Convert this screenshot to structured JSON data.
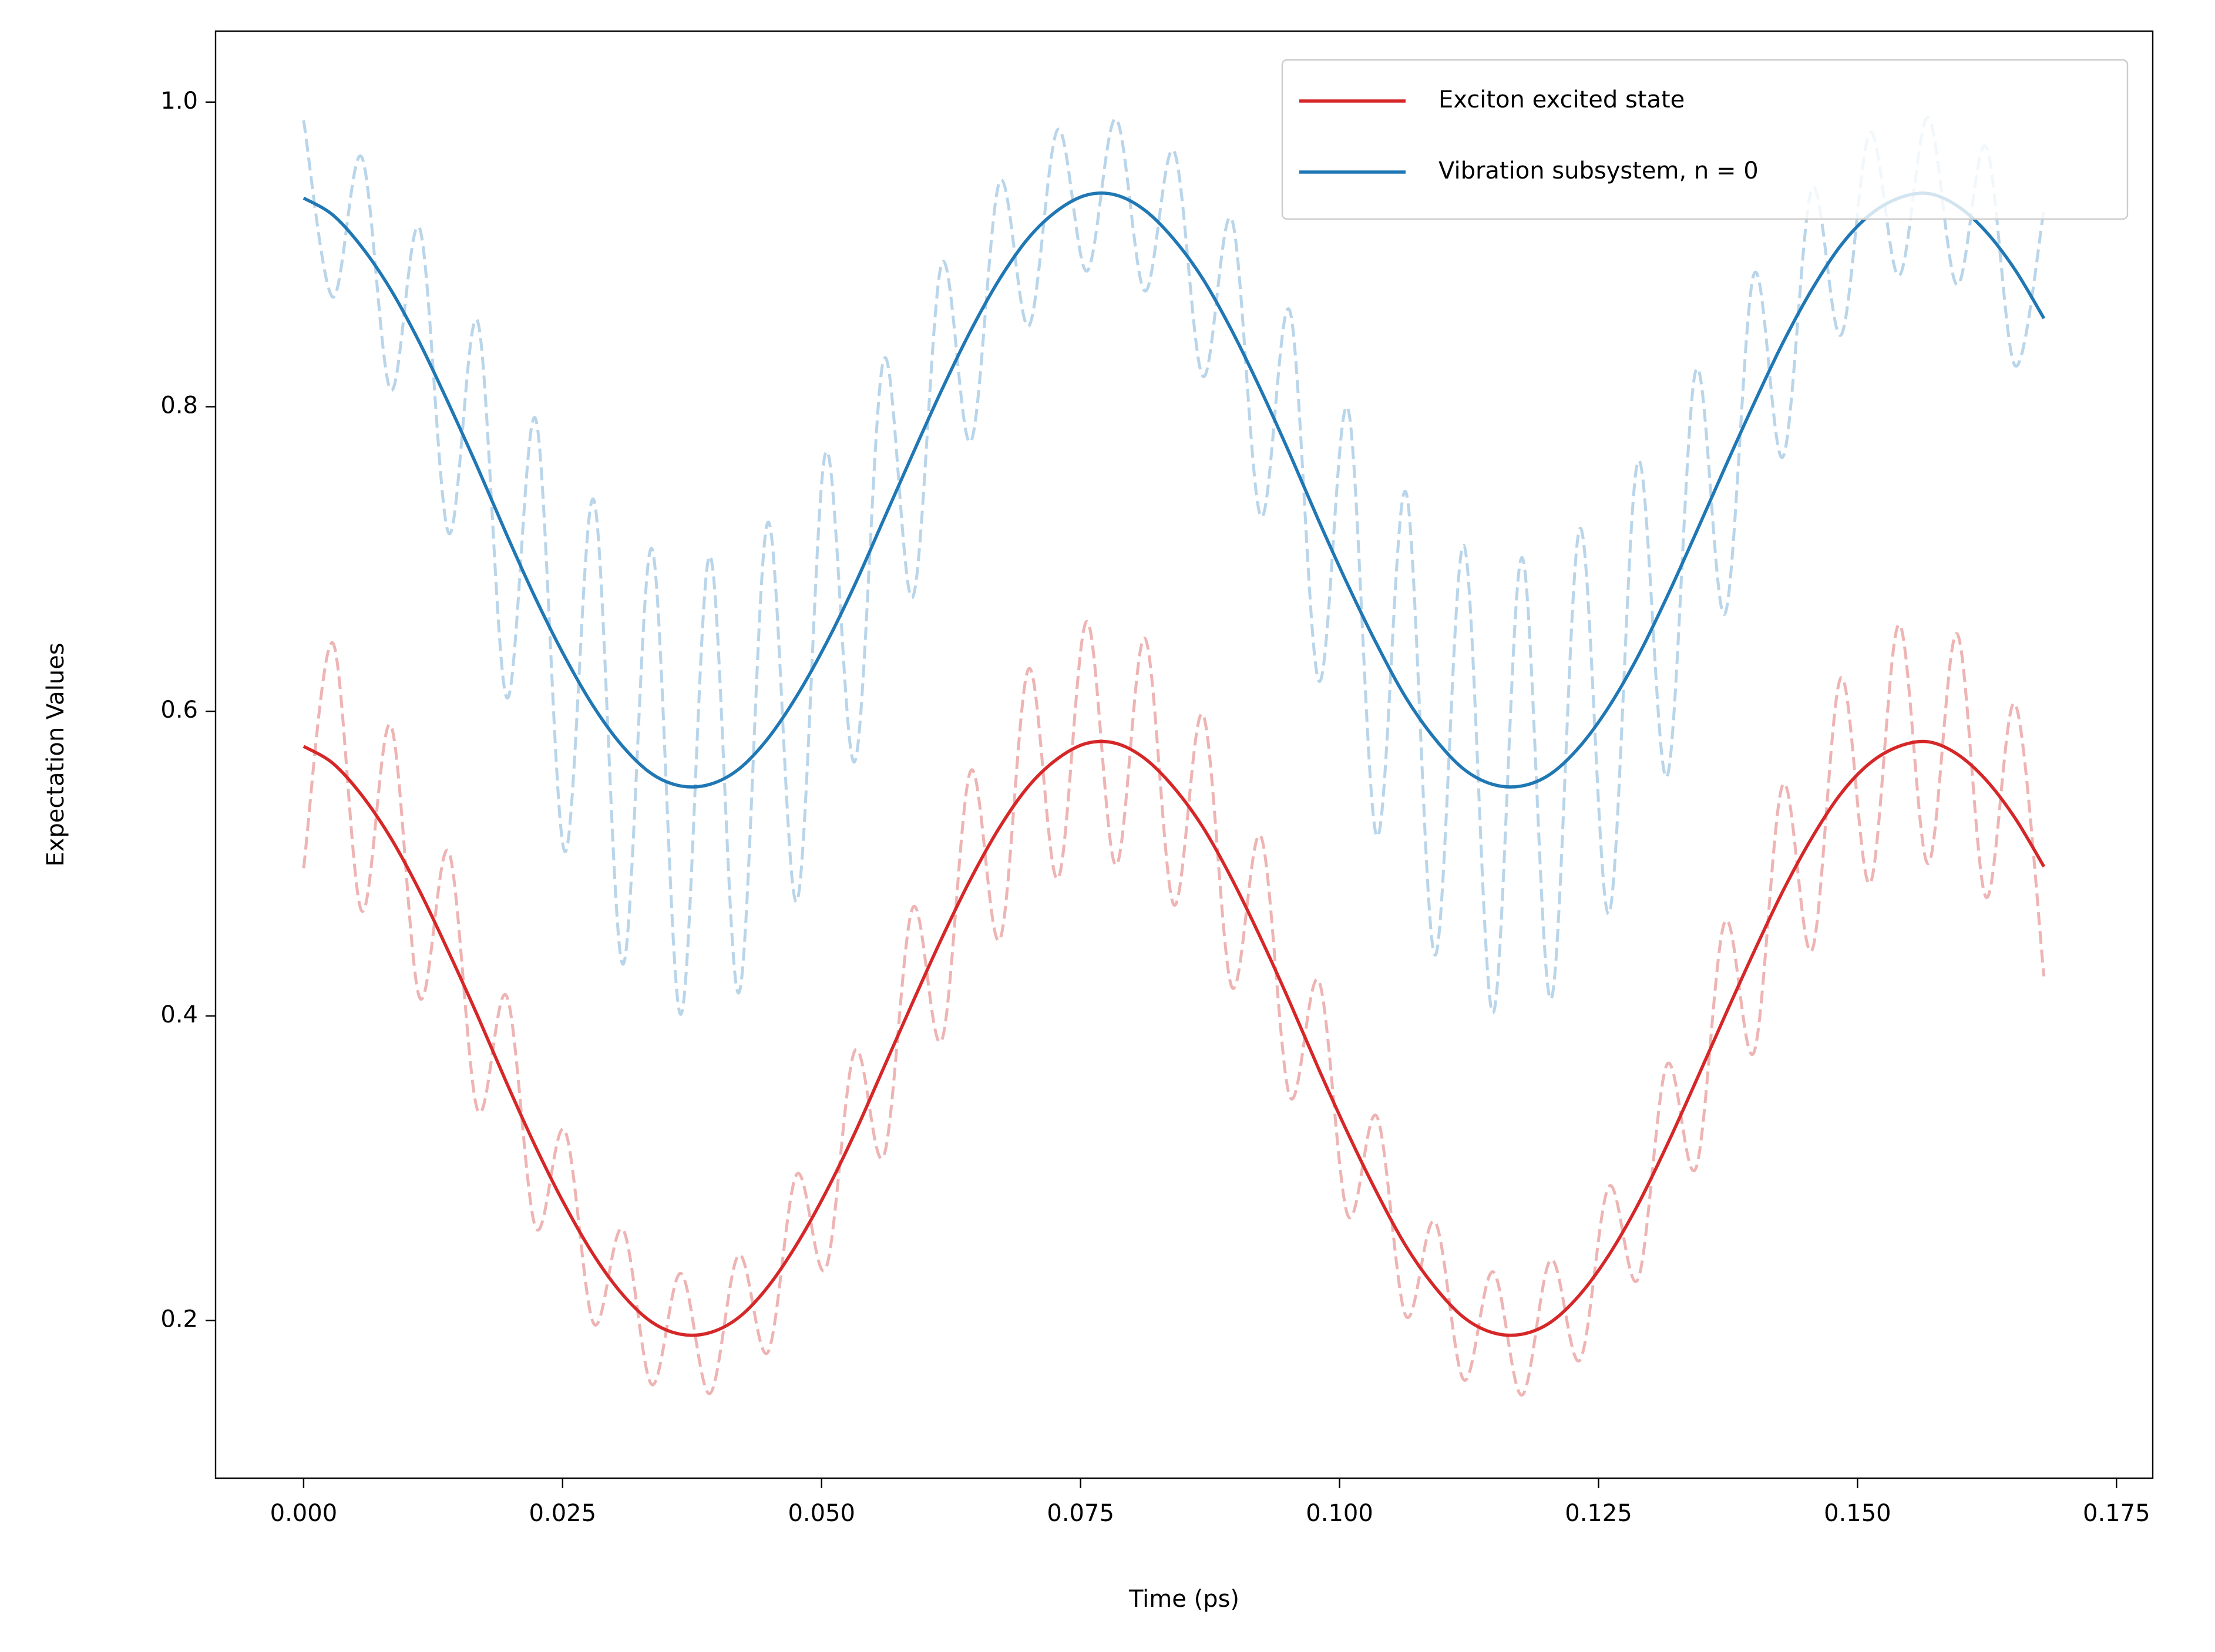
{
  "chart_data": {
    "type": "line",
    "x_label": "Time (ps)",
    "y_label": "Expectation Values",
    "x": [
      0,
      0.0028,
      0.0056,
      0.0084,
      0.0112,
      0.014,
      0.0168,
      0.0196,
      0.0224,
      0.0252,
      0.028,
      0.0308,
      0.0336,
      0.0364,
      0.0392,
      0.042,
      0.0448,
      0.0476,
      0.0504,
      0.0532,
      0.056,
      0.0588,
      0.0616,
      0.0644,
      0.0672,
      0.07,
      0.0728,
      0.0756,
      0.0784,
      0.0812,
      0.084,
      0.0868,
      0.0896,
      0.0924,
      0.0952,
      0.098,
      0.1008,
      0.1036,
      0.1064,
      0.1092,
      0.112,
      0.1148,
      0.1176,
      0.1204,
      0.1232,
      0.126,
      0.1288,
      0.1316,
      0.1344,
      0.1372,
      0.14,
      0.1428,
      0.1456,
      0.1484,
      0.1512,
      0.154,
      0.1568,
      0.1596,
      0.1624,
      0.1652,
      0.168
    ],
    "series": [
      {
        "color": "#eeb4b4",
        "linestyle": "dashed",
        "values": [
          0.497,
          0.645,
          0.469,
          0.591,
          0.412,
          0.508,
          0.338,
          0.413,
          0.261,
          0.325,
          0.198,
          0.26,
          0.158,
          0.231,
          0.152,
          0.243,
          0.179,
          0.296,
          0.234,
          0.377,
          0.308,
          0.471,
          0.384,
          0.561,
          0.45,
          0.628,
          0.49,
          0.659,
          0.499,
          0.648,
          0.473,
          0.598,
          0.419,
          0.518,
          0.347,
          0.423,
          0.269,
          0.334,
          0.203,
          0.265,
          0.161,
          0.232,
          0.151,
          0.24,
          0.174,
          0.288,
          0.227,
          0.368,
          0.3,
          0.462,
          0.376,
          0.552,
          0.443,
          0.622,
          0.487,
          0.657,
          0.5,
          0.651,
          0.478,
          0.605,
          0.426
        ]
      },
      {
        "color": "#b9d5ea",
        "linestyle": "dashed",
        "values": [
          0.988,
          0.872,
          0.964,
          0.811,
          0.917,
          0.717,
          0.856,
          0.609,
          0.792,
          0.508,
          0.739,
          0.434,
          0.707,
          0.401,
          0.702,
          0.415,
          0.724,
          0.475,
          0.77,
          0.567,
          0.831,
          0.675,
          0.894,
          0.777,
          0.948,
          0.853,
          0.982,
          0.889,
          0.989,
          0.876,
          0.968,
          0.82,
          0.923,
          0.728,
          0.863,
          0.62,
          0.799,
          0.518,
          0.744,
          0.44,
          0.709,
          0.402,
          0.701,
          0.411,
          0.72,
          0.467,
          0.764,
          0.557,
          0.824,
          0.664,
          0.887,
          0.767,
          0.943,
          0.847,
          0.98,
          0.886,
          0.99,
          0.88,
          0.971,
          0.827,
          0.929
        ]
      },
      {
        "name": "Exciton excited state",
        "color": "#d62728",
        "linestyle": "solid",
        "values": [
          0.577,
          0.566,
          0.545,
          0.517,
          0.482,
          0.442,
          0.4,
          0.356,
          0.314,
          0.276,
          0.243,
          0.217,
          0.199,
          0.191,
          0.192,
          0.202,
          0.222,
          0.25,
          0.284,
          0.323,
          0.366,
          0.409,
          0.451,
          0.49,
          0.524,
          0.551,
          0.569,
          0.579,
          0.579,
          0.569,
          0.55,
          0.524,
          0.49,
          0.451,
          0.409,
          0.365,
          0.323,
          0.284,
          0.249,
          0.222,
          0.202,
          0.192,
          0.191,
          0.199,
          0.217,
          0.243,
          0.276,
          0.315,
          0.357,
          0.4,
          0.442,
          0.482,
          0.517,
          0.546,
          0.566,
          0.577,
          0.58,
          0.572,
          0.555,
          0.53,
          0.498
        ]
      },
      {
        "name": "Vibration subsystem, n = 0",
        "color": "#1f77b4",
        "linestyle": "solid",
        "values": [
          0.937,
          0.926,
          0.905,
          0.877,
          0.842,
          0.802,
          0.76,
          0.716,
          0.674,
          0.636,
          0.603,
          0.577,
          0.559,
          0.551,
          0.552,
          0.562,
          0.582,
          0.61,
          0.644,
          0.683,
          0.726,
          0.769,
          0.811,
          0.85,
          0.884,
          0.911,
          0.929,
          0.939,
          0.939,
          0.929,
          0.91,
          0.884,
          0.85,
          0.811,
          0.769,
          0.725,
          0.683,
          0.644,
          0.609,
          0.582,
          0.562,
          0.552,
          0.551,
          0.559,
          0.577,
          0.603,
          0.636,
          0.675,
          0.717,
          0.76,
          0.802,
          0.842,
          0.877,
          0.906,
          0.926,
          0.937,
          0.94,
          0.932,
          0.915,
          0.89,
          0.858
        ]
      }
    ],
    "xlim": [
      -0.0085,
      0.1785
    ],
    "xticks": [
      {
        "value": 0,
        "label": "0.000"
      },
      {
        "value": 0.025,
        "label": "0.025"
      },
      {
        "value": 0.05,
        "label": "0.050"
      },
      {
        "value": 0.075,
        "label": "0.075"
      },
      {
        "value": 0.1,
        "label": "0.100"
      },
      {
        "value": 0.125,
        "label": "0.125"
      },
      {
        "value": 0.15,
        "label": "0.150"
      },
      {
        "value": 0.175,
        "label": "0.175"
      }
    ],
    "ylim": [
      0.0965,
      1.0466
    ],
    "yticks": [
      0.2,
      0.4,
      0.6,
      0.8,
      {
        "value": 1.0,
        "label": "1.0"
      }
    ],
    "grid": false,
    "legend": "upper right"
  }
}
